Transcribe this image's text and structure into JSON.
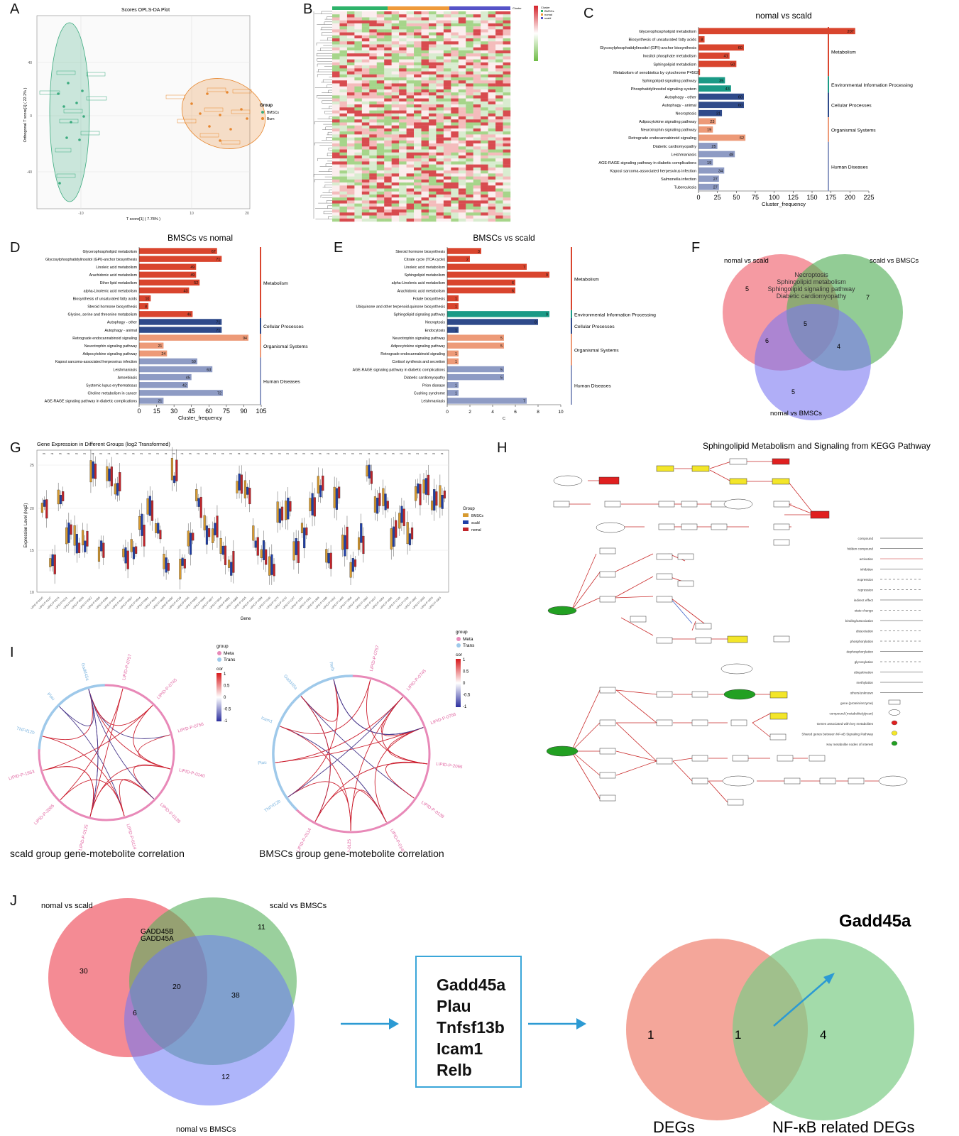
{
  "panel_labels": [
    "A",
    "B",
    "C",
    "D",
    "E",
    "F",
    "G",
    "H",
    "I",
    "J"
  ],
  "panel_a": {
    "title": "Scores OPLS-DA Plot",
    "xlabel": "T score[1] ( 7.78% )",
    "ylabel": "Orthogonal T score[1] ( 22.2% )",
    "legend_title": "Group",
    "legend": [
      "BMSCs",
      "Burn"
    ],
    "colors": {
      "bmscs": "#3cab7f",
      "burn": "#e7872f"
    }
  },
  "panel_b": {
    "legend_title": "Cluster",
    "legend": [
      "BMSCs",
      "nomal",
      "scald"
    ],
    "colors": {
      "green": "#2db36a",
      "orange": "#ef9a3a",
      "blue": "#5553c8"
    }
  },
  "chart_data": [
    {
      "type": "bar",
      "panel": "C",
      "title": "nomal vs scald",
      "xlabel": "Cluster_frequency",
      "xlim": [
        0,
        225
      ],
      "xticks": [
        0,
        25,
        50,
        75,
        100,
        125,
        150,
        175,
        200,
        225
      ],
      "categories": [
        "Glycerophospholipid metabolism",
        "Biosynthesis of unsaturated fatty acids",
        "Glycosylphosphatidylinositol (GPI)-anchor biosynthesis",
        "Inositol phosphate metabolism",
        "Sphingolipid metabolism",
        "Metabolism of xenobiotics by cytochrome P450",
        "Sphingolipid signaling pathway",
        "Phosphatidylinositol signaling system",
        "Autophagy - other",
        "Autophagy - animal",
        "Necroptosis",
        "Adipocytokine signaling pathway",
        "Neurotrophin signaling pathway",
        "Retrograde endocannabinoid signaling",
        "Diabetic cardiomyopathy",
        "Leishmaniasis",
        "AGE-RAGE signaling pathway in diabetic complications",
        "Kaposi sarcoma-associated herpesvirus infection",
        "Salmonella infection",
        "Tuberculosis"
      ],
      "values": [
        207,
        8,
        60,
        41,
        50,
        2,
        35,
        43,
        60,
        60,
        31,
        23,
        19,
        62,
        25,
        48,
        19,
        34,
        27,
        27
      ],
      "groups": [
        {
          "name": "Metabolism",
          "count": 6,
          "color": "#d9452e"
        },
        {
          "name": "Environmental Information Processing",
          "count": 2,
          "color": "#1a9a86"
        },
        {
          "name": "Cellular Processes",
          "count": 3,
          "color": "#2f4a8a"
        },
        {
          "name": "Organismal Systems",
          "count": 3,
          "color": "#ed9a78"
        },
        {
          "name": "Human Diseases",
          "count": 6,
          "color": "#8e9bc4"
        }
      ]
    },
    {
      "type": "bar",
      "panel": "D",
      "title": "BMSCs vs nomal",
      "xlabel": "Cluster_frequency",
      "xlim": [
        0,
        105
      ],
      "xticks": [
        0,
        15,
        30,
        45,
        60,
        75,
        90,
        105
      ],
      "categories": [
        "Glycerophospholipid metabolism",
        "Glycosylphosphatidylinositol (GPI)-anchor biosynthesis",
        "Linoleic acid metabolism",
        "Arachidonic acid metabolism",
        "Ether lipid metabolism",
        "alpha-Linolenic acid metabolism",
        "Biosynthesis of unsaturated fatty acids",
        "Steroid hormone biosynthesis",
        "Glycine, serine and threonine metabolism",
        "Autophagy - other",
        "Autophagy - animal",
        "Retrograde endocannabinoid signaling",
        "Neurotrophin signaling pathway",
        "Adipocytokine signaling pathway",
        "Kaposi sarcoma-associated herpesvirus infection",
        "Leishmaniasis",
        "Amoebiasis",
        "Systemic lupus erythematosus",
        "Choline metabolism in cancer",
        "AGE-RAGE signaling pathway in diabetic complications"
      ],
      "values": [
        67,
        71,
        49,
        49,
        52,
        43,
        10,
        8,
        46,
        71,
        71,
        94,
        21,
        24,
        50,
        63,
        45,
        42,
        72,
        21
      ],
      "groups": [
        {
          "name": "Metabolism",
          "count": 9,
          "color": "#d9452e"
        },
        {
          "name": "Cellular Processes",
          "count": 2,
          "color": "#2f4a8a"
        },
        {
          "name": "Organismal Systems",
          "count": 3,
          "color": "#ed9a78"
        },
        {
          "name": "Human Diseases",
          "count": 6,
          "color": "#8e9bc4"
        }
      ]
    },
    {
      "type": "bar",
      "panel": "E",
      "title": "BMSCs vs scald",
      "xlabel": "C",
      "xlim": [
        0,
        10
      ],
      "xticks": [
        0,
        2,
        4,
        6,
        8,
        10
      ],
      "categories": [
        "Steroid hormone biosynthesis",
        "Citrate cycle (TCA cycle)",
        "Linoleic acid metabolism",
        "Sphingolipid metabolism",
        "alpha-Linolenic acid metabolism",
        "Arachidonic acid metabolism",
        "Folate biosynthesis",
        "Ubiquinone and other terpenoid-quinone biosynthesis",
        "Sphingolipid signaling pathway",
        "Necroptosis",
        "Endocytosis",
        "Neurotrophin signaling pathway",
        "Adipocytokine signaling pathway",
        "Retrograde endocannabinoid signaling",
        "Cortisol synthesis and secretion",
        "AGE-RAGE signaling pathway in diabetic complications",
        "Diabetic cardiomyopathy",
        "Prion disease",
        "Cushing syndrome",
        "Leishmaniasis"
      ],
      "values": [
        3,
        2,
        7,
        9,
        6,
        6,
        1,
        1,
        9,
        8,
        1,
        5,
        5,
        1,
        1,
        5,
        5,
        1,
        1,
        7
      ],
      "groups": [
        {
          "name": "Metabolism",
          "count": 8,
          "color": "#d9452e"
        },
        {
          "name": "Environmental Information Processing",
          "count": 1,
          "color": "#1a9a86"
        },
        {
          "name": "Cellular Processes",
          "count": 2,
          "color": "#2f4a8a"
        },
        {
          "name": "Organismal Systems",
          "count": 4,
          "color": "#ed9a78"
        },
        {
          "name": "Human Diseases",
          "count": 5,
          "color": "#8e9bc4"
        }
      ]
    }
  ],
  "panel_f": {
    "labels": {
      "a": "nomal vs scald",
      "b": "scald vs BMSCs",
      "c": "nomal vs BMSCs"
    },
    "counts": {
      "a_only": "5",
      "b_only": "7",
      "c_only": "5",
      "ab": "",
      "ac": "6",
      "bc": "4",
      "abc": "5"
    },
    "ab_terms": [
      "Necroptosis",
      "Sphingolipid metabolism",
      "Sphingolipid signaling pathway",
      "Diabetic cardiomyopathy"
    ]
  },
  "panel_g": {
    "title": "Gene Expression in Different Groups (log2 Transformed)",
    "xlabel": "Gene",
    "ylabel": "Expression Level (log2)",
    "yticks": [
      "10",
      "15",
      "20",
      "25"
    ],
    "legend_title": "Group",
    "legend": [
      "BMSCs",
      "scald",
      "nomal"
    ],
    "colors": {
      "bmscs": "#d79a2f",
      "scald": "#1f3fa8",
      "nomal": "#c0242a"
    }
  },
  "panel_h": {
    "title": "Sphingolipid Metabolism and Signaling from KEGG Pathway",
    "legend": [
      "compound",
      "hidden compound",
      "activation",
      "inhibition",
      "expression",
      "repression",
      "indirect effect",
      "state change",
      "binding/association",
      "dissociation",
      "phosphorylation",
      "dephosphorylation",
      "glycosylation",
      "ubiquitination",
      "methylation",
      "others/unknown",
      "gene (protein/enzyme)",
      "compound (metabolite/glycan)",
      "Genes associated with key metabolites",
      "Shared genes between NF-κB Signaling Pathway",
      "Key metabolite nodes of interest"
    ]
  },
  "panel_i": {
    "left_caption": "scald group gene-motebolite correlation",
    "right_caption": "BMSCs group gene-motebolite correlation",
    "legend_group_title": "group",
    "legend_groups": [
      "Meta",
      "Trans"
    ],
    "legend_cor_title": "cor",
    "cor_ticks": [
      "1",
      "0.5",
      "0",
      "-0.5",
      "-1"
    ],
    "left_labels": [
      "LIPID-P-0757",
      "LIPID-P-0745",
      "LIPID-P-0756",
      "LIPID-P-0140",
      "LIPID-P-0139",
      "LIPID-P-0114",
      "LIPID-P-0125",
      "LIPID-P-2065",
      "LIPID-P-1953",
      "TNFrf12b",
      "Plau",
      "Gadd45a"
    ],
    "right_labels": [
      "LIPID-P-0757",
      "LIPID-P-0745",
      "LIPID-P-0756",
      "LIPID-P-2065",
      "LIPID-P-0139",
      "LIPID-P-0140",
      "LIPID-P-0125",
      "LIPID-P-0114",
      "TNFrf12b",
      "Plau",
      "Icam1",
      "Gadd45a",
      "Relb"
    ]
  },
  "panel_j": {
    "labels": {
      "a": "nomal vs scald",
      "b": "scald vs BMSCs",
      "c": "nomal vs BMSCs"
    },
    "counts": {
      "a_only": "30",
      "b_only": "11",
      "c_only": "12",
      "ac": "6",
      "bc": "38",
      "abc": "20"
    },
    "ab_terms": [
      "GADD45B",
      "GADD45A"
    ],
    "genes": [
      "Gadd45a",
      "Plau",
      "Tnfsf13b",
      "Icam1",
      "Relb"
    ],
    "venn2": {
      "left": "1",
      "mid": "1",
      "right": "4",
      "left_label": "DEGs",
      "right_label": "NF-κB related DEGs",
      "target": "Gadd45a"
    }
  }
}
